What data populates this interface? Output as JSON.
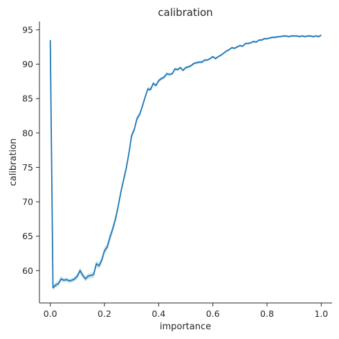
{
  "chart_data": {
    "type": "line",
    "title": "calibration",
    "xlabel": "importance",
    "ylabel": "calibration",
    "xlim": [
      -0.04,
      1.04
    ],
    "ylim": [
      55.3,
      96.2
    ],
    "xticks": [
      0.0,
      0.2,
      0.4,
      0.6,
      0.8,
      1.0
    ],
    "xtick_labels": [
      "0.0",
      "0.2",
      "0.4",
      "0.6",
      "0.8",
      "1.0"
    ],
    "yticks": [
      60,
      65,
      70,
      75,
      80,
      85,
      90,
      95
    ],
    "ytick_labels": [
      "60",
      "65",
      "70",
      "75",
      "80",
      "85",
      "90",
      "95"
    ],
    "grid": false,
    "legend": "none",
    "series": [
      {
        "color": "#1f77b4",
        "band_color": "#9ecae1",
        "x": [
          0.0,
          0.01,
          0.02,
          0.03,
          0.04,
          0.05,
          0.06,
          0.07,
          0.08,
          0.09,
          0.1,
          0.11,
          0.12,
          0.13,
          0.14,
          0.15,
          0.16,
          0.17,
          0.18,
          0.19,
          0.2,
          0.21,
          0.22,
          0.23,
          0.24,
          0.25,
          0.26,
          0.27,
          0.28,
          0.29,
          0.3,
          0.31,
          0.32,
          0.33,
          0.34,
          0.35,
          0.36,
          0.37,
          0.38,
          0.39,
          0.4,
          0.41,
          0.42,
          0.43,
          0.44,
          0.45,
          0.46,
          0.47,
          0.48,
          0.49,
          0.5,
          0.51,
          0.52,
          0.53,
          0.54,
          0.55,
          0.56,
          0.57,
          0.58,
          0.59,
          0.6,
          0.61,
          0.62,
          0.63,
          0.64,
          0.65,
          0.66,
          0.67,
          0.68,
          0.69,
          0.7,
          0.71,
          0.72,
          0.73,
          0.74,
          0.75,
          0.76,
          0.77,
          0.78,
          0.79,
          0.8,
          0.81,
          0.82,
          0.83,
          0.84,
          0.85,
          0.86,
          0.87,
          0.88,
          0.89,
          0.9,
          0.91,
          0.92,
          0.93,
          0.94,
          0.95,
          0.96,
          0.97,
          0.98,
          0.99,
          1.0
        ],
        "y": [
          93.5,
          57.5,
          57.9,
          58.1,
          58.8,
          58.6,
          58.7,
          58.5,
          58.6,
          58.8,
          59.2,
          60.0,
          59.3,
          58.8,
          59.2,
          59.3,
          59.4,
          61.0,
          60.7,
          61.5,
          62.9,
          63.4,
          64.8,
          66.0,
          67.4,
          69.2,
          71.3,
          73.1,
          74.8,
          77.0,
          79.6,
          80.5,
          82.1,
          82.7,
          83.9,
          85.2,
          86.4,
          86.3,
          87.2,
          86.9,
          87.6,
          87.9,
          88.1,
          88.6,
          88.5,
          88.6,
          89.3,
          89.2,
          89.5,
          89.1,
          89.5,
          89.6,
          89.8,
          90.1,
          90.2,
          90.3,
          90.3,
          90.6,
          90.6,
          90.8,
          91.1,
          90.8,
          91.1,
          91.3,
          91.6,
          91.9,
          92.1,
          92.4,
          92.3,
          92.5,
          92.7,
          92.6,
          93.0,
          93.0,
          93.1,
          93.3,
          93.2,
          93.5,
          93.5,
          93.7,
          93.7,
          93.8,
          93.9,
          93.9,
          94.0,
          94.0,
          94.1,
          94.1,
          94.0,
          94.1,
          94.1,
          94.1,
          94.0,
          94.1,
          94.0,
          94.1,
          94.1,
          94.0,
          94.1,
          94.0,
          94.2
        ],
        "ci_halfwidth": [
          0.12,
          0.3,
          0.4,
          0.4,
          0.35,
          0.3,
          0.3,
          0.3,
          0.3,
          0.35,
          0.4,
          0.45,
          0.4,
          0.4,
          0.4,
          0.4,
          0.45,
          0.45,
          0.45,
          0.5,
          0.5,
          0.55,
          0.55,
          0.55,
          0.55,
          0.55,
          0.5,
          0.5,
          0.5,
          0.45,
          0.4,
          0.4,
          0.4,
          0.35,
          0.35,
          0.3,
          0.3,
          0.3,
          0.3,
          0.25,
          0.25,
          0.25,
          0.25,
          0.25,
          0.25,
          0.2,
          0.2,
          0.2,
          0.2,
          0.2,
          0.2,
          0.2,
          0.2,
          0.2,
          0.2,
          0.2,
          0.2,
          0.2,
          0.15,
          0.15,
          0.15,
          0.15,
          0.15,
          0.15,
          0.15,
          0.15,
          0.15,
          0.15,
          0.15,
          0.15,
          0.15,
          0.15,
          0.15,
          0.15,
          0.15,
          0.15,
          0.15,
          0.15,
          0.15,
          0.15,
          0.15,
          0.15,
          0.15,
          0.15,
          0.15,
          0.15,
          0.15,
          0.15,
          0.15,
          0.15,
          0.15,
          0.15,
          0.15,
          0.15,
          0.15,
          0.15,
          0.15,
          0.15,
          0.15,
          0.15,
          0.15
        ]
      }
    ]
  }
}
